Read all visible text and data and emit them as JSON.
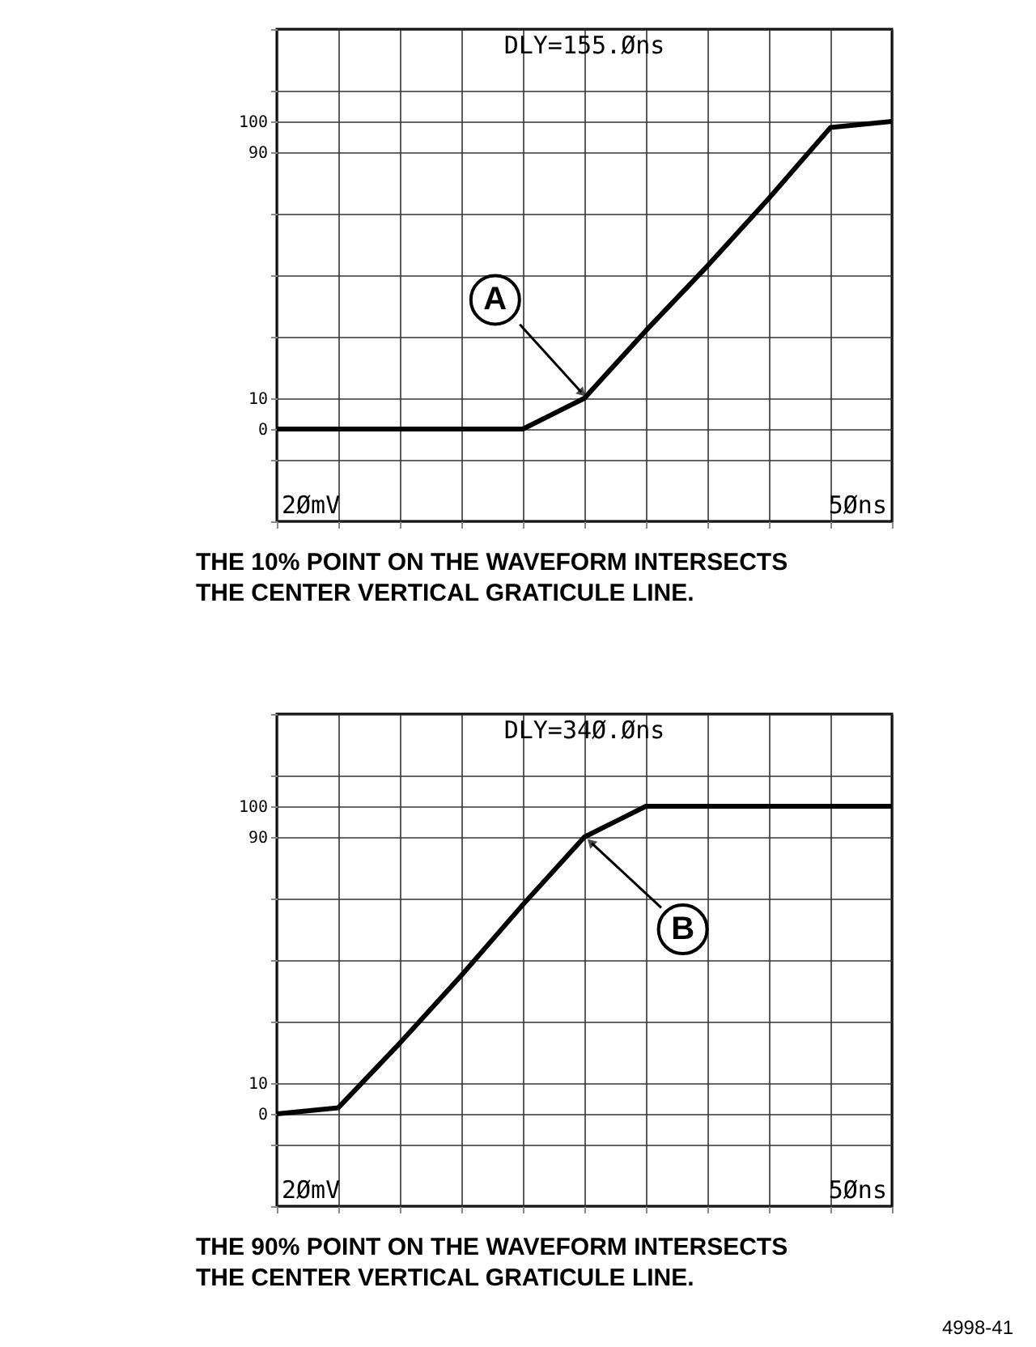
{
  "chart_data": [
    {
      "type": "line",
      "title": "DLY=155.Øns",
      "color": "#000000",
      "categories": [
        null,
        null,
        null,
        null,
        null,
        null,
        null,
        null,
        null,
        null,
        null
      ],
      "values": [
        0,
        0,
        0,
        0,
        0,
        10,
        32,
        53,
        75,
        98,
        100
      ],
      "ylim": [
        -30,
        130
      ],
      "yticks": [
        {
          "value": -30,
          "label": null
        },
        {
          "value": -10,
          "label": null
        },
        0,
        10,
        {
          "value": 30,
          "label": null
        },
        {
          "value": 50,
          "label": null
        },
        {
          "value": 70,
          "label": null
        },
        90,
        100,
        {
          "value": 110,
          "label": null
        },
        {
          "value": 130,
          "label": null
        }
      ],
      "grid": true,
      "tick_labels": "y",
      "annotations": [
        "A",
        "2ØmV",
        "5Øns",
        "THE 10% POINT ON THE WAVEFORM INTERSECTS THE CENTER VERTICAL GRATICULE LINE."
      ]
    },
    {
      "type": "line",
      "title": "DLY=34Ø.Øns",
      "color": "#000000",
      "categories": [
        null,
        null,
        null,
        null,
        null,
        null,
        null,
        null,
        null,
        null,
        null
      ],
      "values": [
        0,
        2,
        23,
        45,
        68,
        90,
        100,
        100,
        100,
        100,
        100
      ],
      "ylim": [
        -30,
        130
      ],
      "yticks": [
        {
          "value": -30,
          "label": null
        },
        {
          "value": -10,
          "label": null
        },
        0,
        10,
        {
          "value": 30,
          "label": null
        },
        {
          "value": 50,
          "label": null
        },
        {
          "value": 70,
          "label": null
        },
        90,
        100,
        {
          "value": 110,
          "label": null
        },
        {
          "value": 130,
          "label": null
        }
      ],
      "grid": true,
      "tick_labels": "y",
      "annotations": [
        "B",
        "2ØmV",
        "5Øns",
        "THE 90% POINT ON THE WAVEFORM INTERSECTS THE CENTER VERTICAL GRATICULE LINE.",
        "4998-41"
      ]
    }
  ]
}
